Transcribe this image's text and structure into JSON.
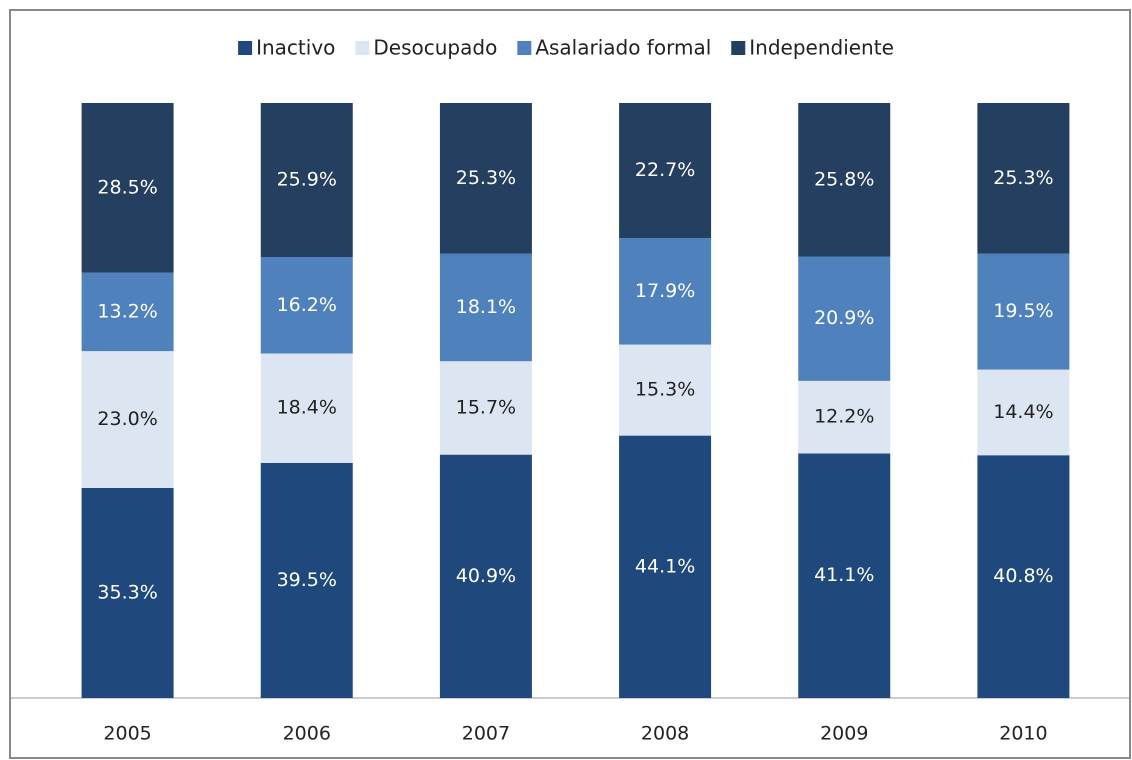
{
  "chart_data": {
    "type": "stacked_bar",
    "categories": [
      "2005",
      "2006",
      "2007",
      "2008",
      "2009",
      "2010"
    ],
    "series": [
      {
        "name": "Inactivo",
        "color": "#1f497d",
        "values": [
          35.3,
          39.5,
          40.9,
          44.1,
          41.1,
          40.8
        ],
        "value_labels": [
          "35.3%",
          "39.5%",
          "40.9%",
          "44.1%",
          "41.1%",
          "40.8%"
        ]
      },
      {
        "name": "Desocupado",
        "color": "#dce6f2",
        "values": [
          23.0,
          18.4,
          15.7,
          15.3,
          12.2,
          14.4
        ],
        "value_labels": [
          "23.0%",
          "18.4%",
          "15.7%",
          "15.3%",
          "12.2%",
          "14.4%"
        ]
      },
      {
        "name": "Asalariado formal",
        "color": "#4f81bd",
        "values": [
          13.2,
          16.2,
          18.1,
          17.9,
          20.9,
          19.5
        ],
        "value_labels": [
          "13.2%",
          "16.2%",
          "18.1%",
          "17.9%",
          "20.9%",
          "19.5%"
        ]
      },
      {
        "name": "Independiente",
        "color": "#243f60",
        "values": [
          28.5,
          25.9,
          25.3,
          22.7,
          25.8,
          25.3
        ],
        "value_labels": [
          "28.5%",
          "25.9%",
          "25.3%",
          "22.7%",
          "25.8%",
          "25.3%"
        ]
      }
    ],
    "ylim": [
      0,
      100
    ],
    "legend": "top"
  }
}
